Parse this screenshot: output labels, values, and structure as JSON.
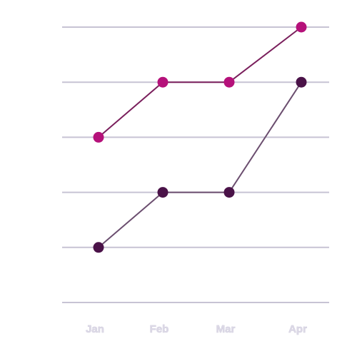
{
  "chart_data": {
    "type": "line",
    "categories": [
      "Jan",
      "Feb",
      "Mar",
      "Apr"
    ],
    "ylim": [
      0,
      5
    ],
    "grid": true,
    "legend": "none",
    "series": [
      {
        "values": [
          3,
          4,
          4,
          5
        ],
        "line_color": "#7a1f5c",
        "point_color": "#b5117a"
      },
      {
        "values": [
          1,
          2,
          2,
          4
        ],
        "line_color": "#6b4e6f",
        "point_color": "#4a1248"
      }
    ],
    "gridline_color": "#c7c3d4",
    "tick_label_color": "#d9d6e3"
  }
}
